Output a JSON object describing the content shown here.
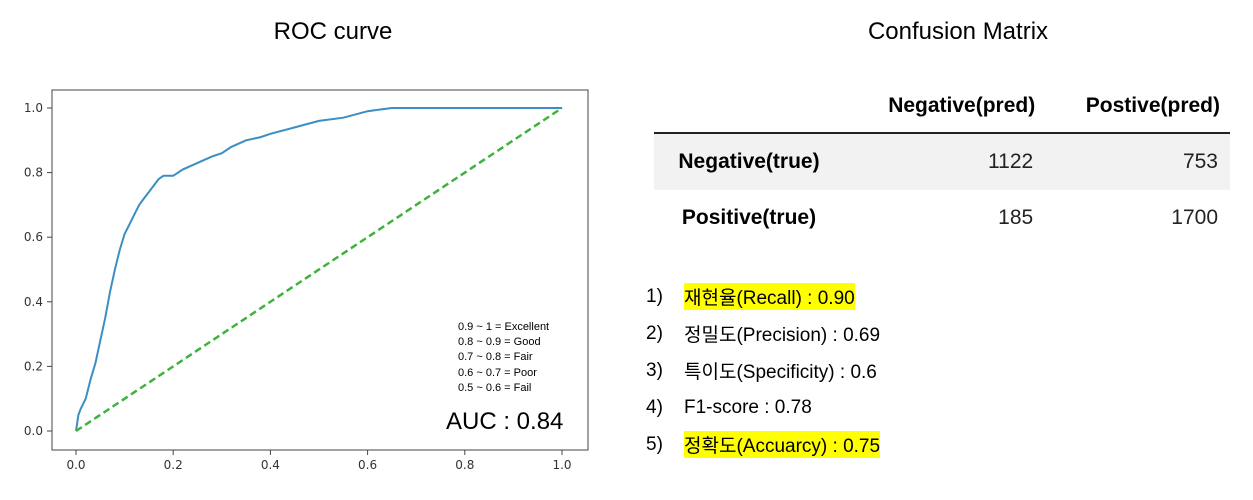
{
  "roc": {
    "title": "ROC curve",
    "auc_label": "AUC : 0.84",
    "legend": [
      "0.9 ~ 1 = Excellent",
      "0.8 ~ 0.9 = Good",
      "0.7 ~ 0.8 = Fair",
      "0.6 ~ 0.7 = Poor",
      "0.5 ~ 0.6 = Fail"
    ]
  },
  "chart_data": {
    "type": "line",
    "title": "ROC curve",
    "xlabel": "",
    "ylabel": "",
    "xlim": [
      0,
      1
    ],
    "ylim": [
      0,
      1
    ],
    "xticks": [
      "0.0",
      "0.2",
      "0.4",
      "0.6",
      "0.8",
      "1.0"
    ],
    "yticks": [
      "0.0",
      "0.2",
      "0.4",
      "0.6",
      "0.8",
      "1.0"
    ],
    "grid": false,
    "series": [
      {
        "color": "#3b8ec4",
        "style": "solid",
        "x": [
          0.0,
          0.005,
          0.01,
          0.02,
          0.03,
          0.04,
          0.05,
          0.06,
          0.07,
          0.08,
          0.09,
          0.1,
          0.11,
          0.12,
          0.13,
          0.14,
          0.15,
          0.16,
          0.17,
          0.18,
          0.2,
          0.22,
          0.25,
          0.28,
          0.3,
          0.32,
          0.35,
          0.38,
          0.4,
          0.45,
          0.5,
          0.55,
          0.6,
          0.65,
          0.7,
          0.8,
          0.9,
          1.0
        ],
        "y": [
          0.0,
          0.05,
          0.07,
          0.1,
          0.16,
          0.21,
          0.28,
          0.35,
          0.43,
          0.5,
          0.56,
          0.61,
          0.64,
          0.67,
          0.7,
          0.72,
          0.74,
          0.76,
          0.78,
          0.79,
          0.79,
          0.81,
          0.83,
          0.85,
          0.86,
          0.88,
          0.9,
          0.91,
          0.92,
          0.94,
          0.96,
          0.97,
          0.99,
          1.0,
          1.0,
          1.0,
          1.0,
          1.0
        ]
      },
      {
        "color": "#3db33d",
        "style": "dashed",
        "x": [
          0,
          1
        ],
        "y": [
          0,
          1
        ]
      }
    ]
  },
  "confusion": {
    "title": "Confusion Matrix",
    "col_headers": [
      "Negative(pred)",
      "Postive(pred)"
    ],
    "rows": [
      {
        "label": "Negative(true)",
        "values": [
          "1122",
          "753"
        ]
      },
      {
        "label": "Positive(true)",
        "values": [
          "185",
          "1700"
        ]
      }
    ]
  },
  "metrics": {
    "highlight_color": "#ffff00",
    "items": [
      {
        "num": "1)",
        "text": "재현율(Recall) : 0.90",
        "highlight": true
      },
      {
        "num": "2)",
        "text": "정밀도(Precision) : 0.69",
        "highlight": false
      },
      {
        "num": "3)",
        "text": "특이도(Specificity) : 0.6",
        "highlight": false
      },
      {
        "num": "4)",
        "text": "F1-score : 0.78",
        "highlight": false
      },
      {
        "num": "5)",
        "text": "정확도(Accuarcy) : 0.75",
        "highlight": true
      }
    ]
  }
}
